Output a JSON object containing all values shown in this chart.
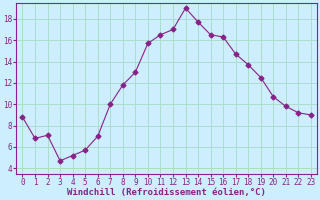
{
  "x": [
    0,
    1,
    2,
    3,
    4,
    5,
    6,
    7,
    8,
    9,
    10,
    11,
    12,
    13,
    14,
    15,
    16,
    17,
    18,
    19,
    20,
    21,
    22,
    23
  ],
  "y": [
    8.8,
    6.8,
    7.1,
    4.7,
    5.2,
    5.7,
    7.0,
    10.0,
    11.8,
    13.0,
    15.7,
    16.5,
    17.0,
    19.0,
    17.7,
    16.5,
    16.3,
    14.7,
    13.7,
    12.5,
    10.7,
    9.8,
    9.2,
    9.0
  ],
  "line_color": "#882288",
  "marker": "D",
  "marker_size": 2.5,
  "bg_color": "#cceeff",
  "grid_color": "#aaddcc",
  "xlabel": "Windchill (Refroidissement éolien,°C)",
  "xlim": [
    -0.5,
    23.5
  ],
  "ylim": [
    3.5,
    19.5
  ],
  "xticks": [
    0,
    1,
    2,
    3,
    4,
    5,
    6,
    7,
    8,
    9,
    10,
    11,
    12,
    13,
    14,
    15,
    16,
    17,
    18,
    19,
    20,
    21,
    22,
    23
  ],
  "yticks": [
    4,
    6,
    8,
    10,
    12,
    14,
    16,
    18
  ],
  "axis_color": "#882288",
  "tick_label_color": "#882288",
  "xlabel_color": "#882288",
  "tick_fontsize": 5.5,
  "xlabel_fontsize": 6.5
}
